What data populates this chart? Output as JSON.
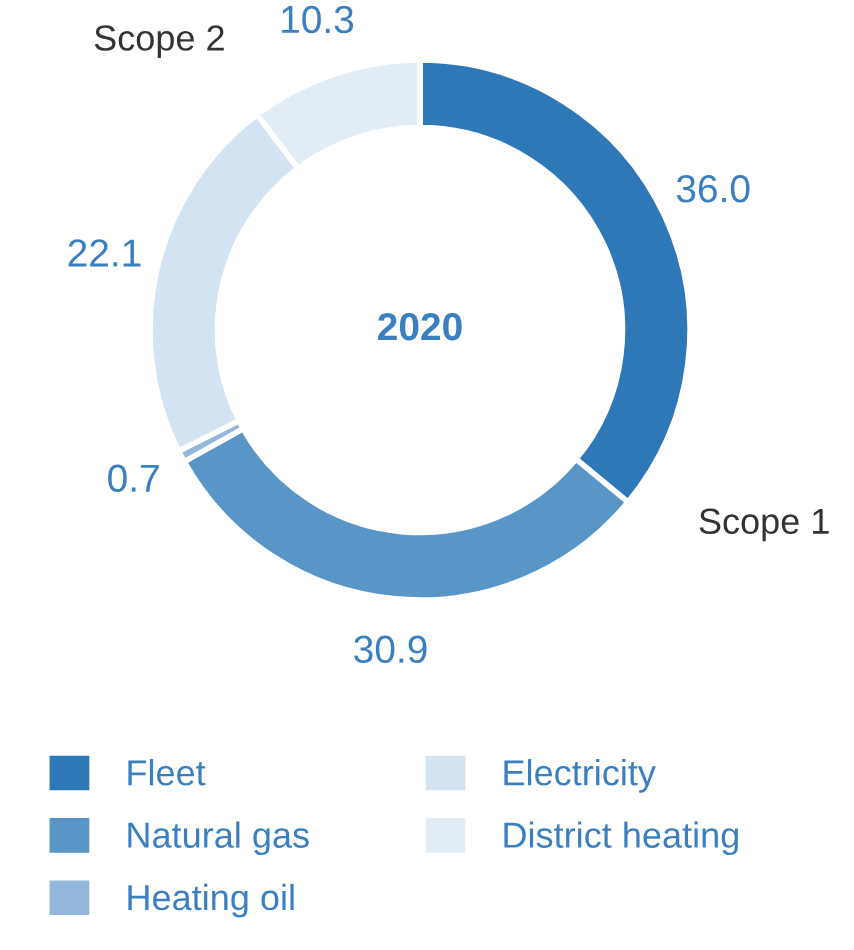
{
  "chart_data": {
    "type": "donut",
    "title": "2020",
    "categories": [
      "Fleet",
      "Natural gas",
      "Heating oil",
      "Electricity",
      "District heating"
    ],
    "values": [
      36.0,
      30.9,
      0.7,
      22.1,
      10.3
    ],
    "value_labels": [
      "36.0",
      "30.9",
      "0.7",
      "22.1",
      "10.3"
    ],
    "colors": [
      "#2f78b7",
      "#5a95c8",
      "#92b7da",
      "#d4e3f1",
      "#e2ecf5"
    ],
    "annotations": [
      "Scope 1",
      "Scope 2"
    ],
    "legend": "bottom"
  }
}
